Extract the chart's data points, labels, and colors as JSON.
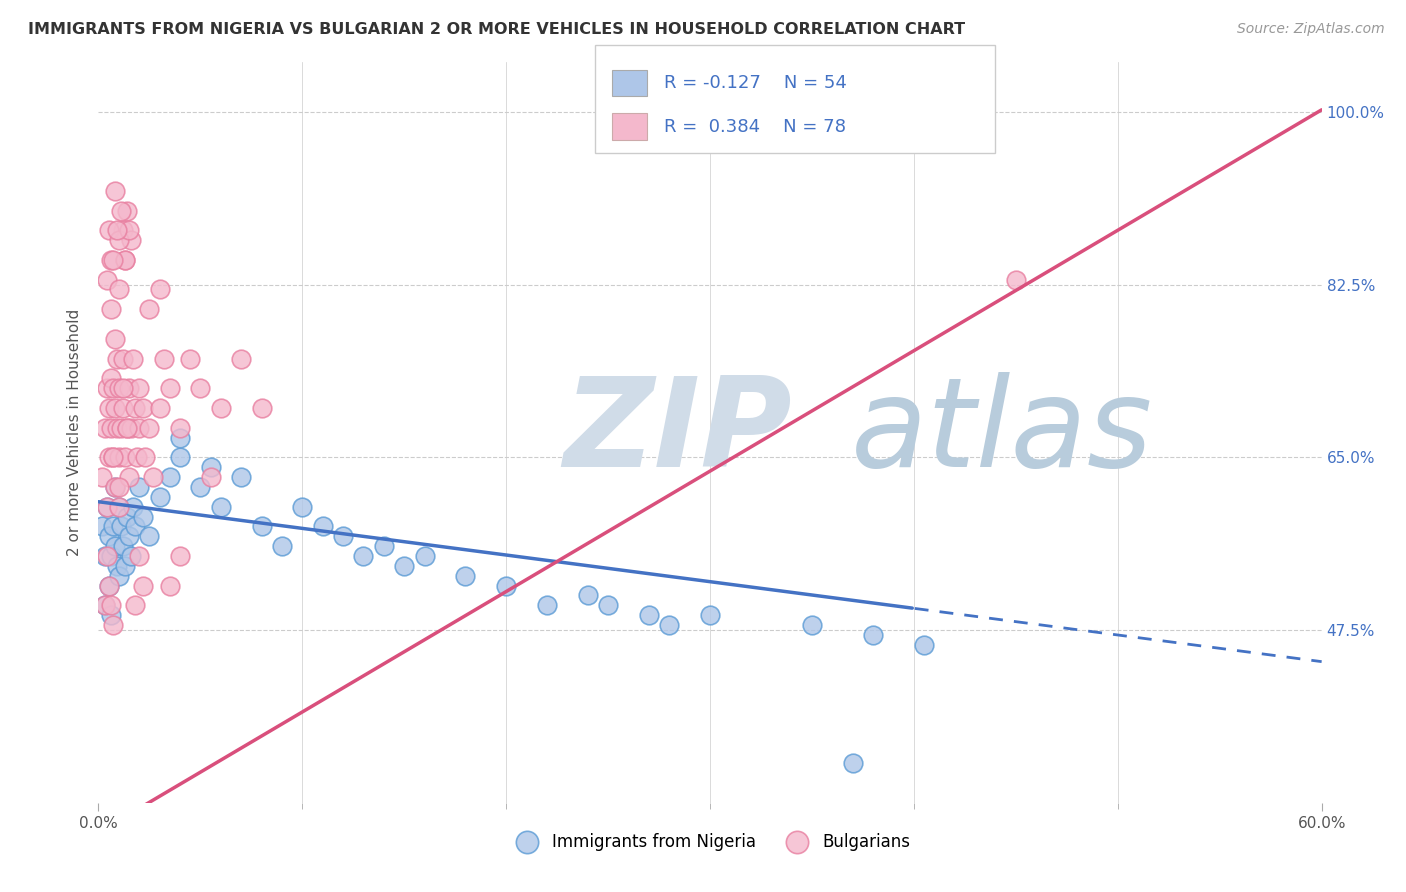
{
  "title": "IMMIGRANTS FROM NIGERIA VS BULGARIAN 2 OR MORE VEHICLES IN HOUSEHOLD CORRELATION CHART",
  "source": "Source: ZipAtlas.com",
  "xlabel_nigeria": "Immigrants from Nigeria",
  "xlabel_bulgarians": "Bulgarians",
  "ylabel": "2 or more Vehicles in Household",
  "xlim": [
    0.0,
    60.0
  ],
  "ylim": [
    30.0,
    105.0
  ],
  "xtick_labels": [
    "0.0%",
    "60.0%"
  ],
  "xtick_vals": [
    0.0,
    60.0
  ],
  "xtick_minor": [
    10.0,
    20.0,
    30.0,
    40.0,
    50.0
  ],
  "yticks": [
    47.5,
    65.0,
    82.5,
    100.0
  ],
  "nigeria_color": "#aec6e8",
  "nigeria_edge": "#5b9bd5",
  "bulgarian_color": "#f4b8cc",
  "bulgarian_edge": "#e87fa0",
  "nigeria_R": -0.127,
  "nigeria_N": 54,
  "bulgarian_R": 0.384,
  "bulgarian_N": 78,
  "nigeria_line_color": "#4472c4",
  "bulgarian_line_color": "#d94f7c",
  "watermark_zip": "ZIP",
  "watermark_atlas": "atlas",
  "watermark_color_zip": "#d0dce8",
  "watermark_color_atlas": "#b8ccdc",
  "legend_box_nigeria": "#aec6e8",
  "legend_box_bulgarian": "#f4b8cc",
  "nigeria_line_intercept": 60.5,
  "nigeria_line_slope": -0.27,
  "nigerian_dash_start": 40.0,
  "bulgarian_line_intercept": 27.0,
  "bulgarian_line_slope": 1.22,
  "nigeria_scatter_x": [
    0.2,
    0.3,
    0.3,
    0.4,
    0.5,
    0.5,
    0.6,
    0.6,
    0.7,
    0.8,
    0.8,
    0.9,
    1.0,
    1.0,
    1.1,
    1.2,
    1.3,
    1.4,
    1.5,
    1.6,
    1.7,
    1.8,
    2.0,
    2.2,
    2.5,
    3.0,
    3.5,
    4.0,
    5.0,
    5.5,
    6.0,
    7.0,
    8.0,
    9.0,
    10.0,
    11.0,
    12.0,
    13.0,
    14.0,
    15.0,
    16.0,
    18.0,
    20.0,
    22.0,
    24.0,
    25.0,
    27.0,
    28.0,
    30.0,
    35.0,
    38.0,
    40.5,
    4.0,
    37.0
  ],
  "nigeria_scatter_y": [
    58.0,
    55.0,
    50.0,
    60.0,
    57.0,
    52.0,
    55.0,
    49.0,
    58.0,
    62.0,
    56.0,
    54.0,
    60.0,
    53.0,
    58.0,
    56.0,
    54.0,
    59.0,
    57.0,
    55.0,
    60.0,
    58.0,
    62.0,
    59.0,
    57.0,
    61.0,
    63.0,
    65.0,
    62.0,
    64.0,
    60.0,
    63.0,
    58.0,
    56.0,
    60.0,
    58.0,
    57.0,
    55.0,
    56.0,
    54.0,
    55.0,
    53.0,
    52.0,
    50.0,
    51.0,
    50.0,
    49.0,
    48.0,
    49.0,
    48.0,
    47.0,
    46.0,
    67.0,
    34.0
  ],
  "bulgarian_scatter_x": [
    0.2,
    0.3,
    0.4,
    0.4,
    0.5,
    0.5,
    0.6,
    0.6,
    0.7,
    0.7,
    0.8,
    0.8,
    0.9,
    0.9,
    1.0,
    1.0,
    1.0,
    1.1,
    1.2,
    1.2,
    1.3,
    1.4,
    1.5,
    1.5,
    1.6,
    1.7,
    1.8,
    1.9,
    2.0,
    2.0,
    2.2,
    2.3,
    2.5,
    2.7,
    3.0,
    3.2,
    3.5,
    4.0,
    4.5,
    5.0,
    6.0,
    7.0,
    8.0,
    1.2,
    1.3,
    1.4,
    1.6,
    0.5,
    0.6,
    0.8,
    1.0,
    1.1,
    1.3,
    1.5,
    0.4,
    0.6,
    0.7,
    0.9,
    1.0,
    2.5,
    3.0,
    0.3,
    0.5,
    0.7,
    1.8,
    2.0,
    2.2,
    0.4,
    0.6,
    3.5,
    4.0,
    5.5,
    0.8,
    1.2,
    0.7,
    1.4,
    1.0,
    45.0
  ],
  "bulgarian_scatter_y": [
    63.0,
    68.0,
    72.0,
    60.0,
    70.0,
    65.0,
    73.0,
    68.0,
    72.0,
    65.0,
    70.0,
    62.0,
    68.0,
    75.0,
    72.0,
    65.0,
    60.0,
    68.0,
    75.0,
    70.0,
    65.0,
    68.0,
    72.0,
    63.0,
    68.0,
    75.0,
    70.0,
    65.0,
    68.0,
    72.0,
    70.0,
    65.0,
    68.0,
    63.0,
    70.0,
    75.0,
    72.0,
    68.0,
    75.0,
    72.0,
    70.0,
    75.0,
    70.0,
    88.0,
    85.0,
    90.0,
    87.0,
    88.0,
    85.0,
    92.0,
    87.0,
    90.0,
    85.0,
    88.0,
    83.0,
    80.0,
    85.0,
    88.0,
    82.0,
    80.0,
    82.0,
    50.0,
    52.0,
    48.0,
    50.0,
    55.0,
    52.0,
    55.0,
    50.0,
    52.0,
    55.0,
    63.0,
    77.0,
    72.0,
    65.0,
    68.0,
    62.0,
    83.0
  ]
}
